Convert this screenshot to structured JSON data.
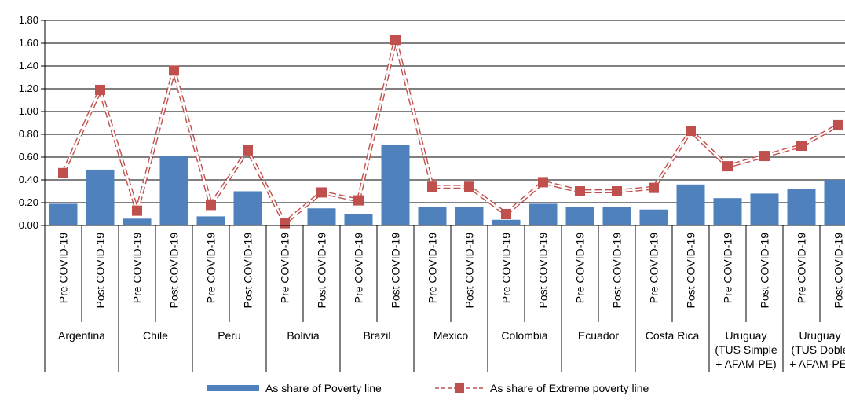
{
  "chart_data": {
    "type": "bar",
    "y_ticks": [
      "0.00",
      "0.20",
      "0.40",
      "0.60",
      "0.80",
      "1.00",
      "1.20",
      "1.40",
      "1.60",
      "1.80"
    ],
    "ylim": [
      0,
      1.8
    ],
    "grid": true,
    "legend_position": "bottom",
    "period_labels": [
      "Pre COVID-19",
      "Post COVID-19",
      "Pre COVID-19",
      "Post COVID-19",
      "Pre COVID-19",
      "Post COVID-19",
      "Pre COVID-19",
      "Post COVID-19",
      "Pre COVID-19",
      "Post COVID-19",
      "Pre COVID-19",
      "Post COVID-19",
      "Pre COVID-19",
      "Post COVID-19",
      "Pre COVID-19",
      "Post COVID-19",
      "Pre COVID-19",
      "Post COVID-19",
      "Pre COVID-19",
      "Post COVID-19",
      "Pre COVID-19",
      "Post COVID-19"
    ],
    "groups": [
      {
        "lines": [
          "Argentina"
        ]
      },
      {
        "lines": [
          "Chile"
        ]
      },
      {
        "lines": [
          "Peru"
        ]
      },
      {
        "lines": [
          "Bolivia"
        ]
      },
      {
        "lines": [
          "Brazil"
        ]
      },
      {
        "lines": [
          "Mexico"
        ]
      },
      {
        "lines": [
          "Colombia"
        ]
      },
      {
        "lines": [
          "Ecuador"
        ]
      },
      {
        "lines": [
          "Costa Rica"
        ]
      },
      {
        "lines": [
          "Uruguay",
          "(TUS Simple",
          "+ AFAM-PE)"
        ]
      },
      {
        "lines": [
          "Uruguay",
          "(TUS Doble",
          "+ AFAM-PE)"
        ]
      }
    ],
    "series": [
      {
        "name": "As share of Poverty line",
        "type": "bar",
        "color": "#4f81bd",
        "values": [
          0.19,
          0.49,
          0.06,
          0.61,
          0.08,
          0.3,
          0.005,
          0.15,
          0.1,
          0.71,
          0.16,
          0.16,
          0.05,
          0.19,
          0.16,
          0.16,
          0.14,
          0.36,
          0.24,
          0.28,
          0.32,
          0.4
        ]
      },
      {
        "name": "As share of Extreme poverty line",
        "type": "line",
        "color": "#c0504d",
        "values": [
          0.46,
          1.19,
          0.13,
          1.36,
          0.18,
          0.66,
          0.02,
          0.29,
          0.22,
          1.63,
          0.34,
          0.34,
          0.1,
          0.38,
          0.3,
          0.3,
          0.33,
          0.83,
          0.52,
          0.61,
          0.7,
          0.88
        ]
      }
    ]
  }
}
